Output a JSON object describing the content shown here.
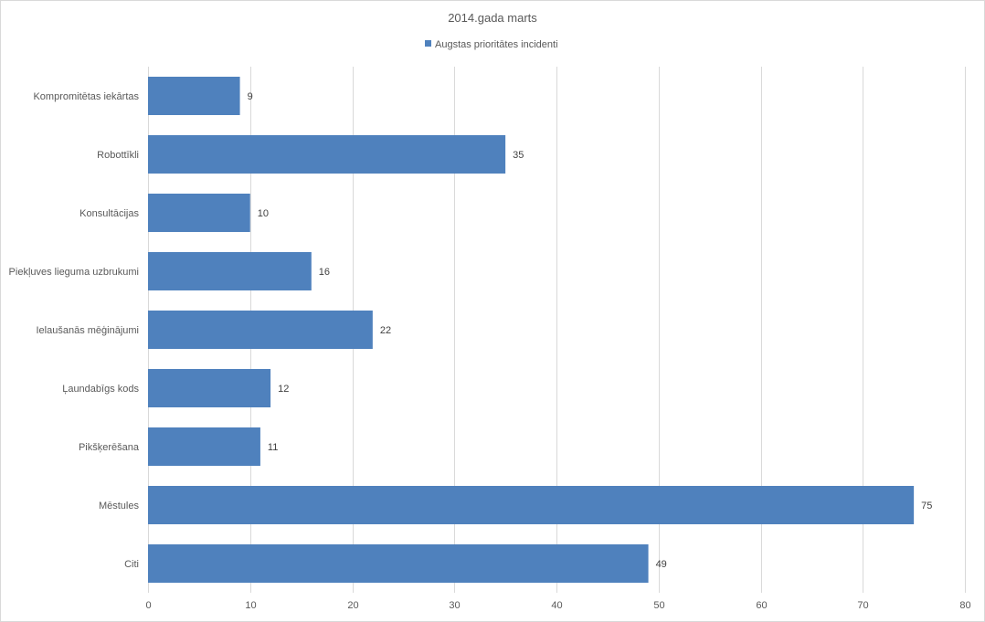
{
  "chart_data": {
    "type": "bar",
    "orientation": "horizontal",
    "title": "2014.gada marts",
    "categories": [
      "Kompromitētas iekārtas",
      "Robottīkli",
      "Konsultācijas",
      "Piekļuves lieguma uzbrukumi",
      "Ielaušanās mēģinājumi",
      "Ļaundabīgs kods",
      "Pikšķerēšana",
      "Mēstules",
      "Citi"
    ],
    "series": [
      {
        "name": "Augstas prioritātes incidenti",
        "color": "#4f81bd",
        "values": [
          9,
          35,
          10,
          16,
          22,
          12,
          11,
          75,
          49
        ]
      }
    ],
    "xlim": [
      0,
      80
    ],
    "xticks": [
      0,
      10,
      20,
      30,
      40,
      50,
      60,
      70,
      80
    ],
    "grid": true,
    "legend": "top-center",
    "data_labels": true
  }
}
